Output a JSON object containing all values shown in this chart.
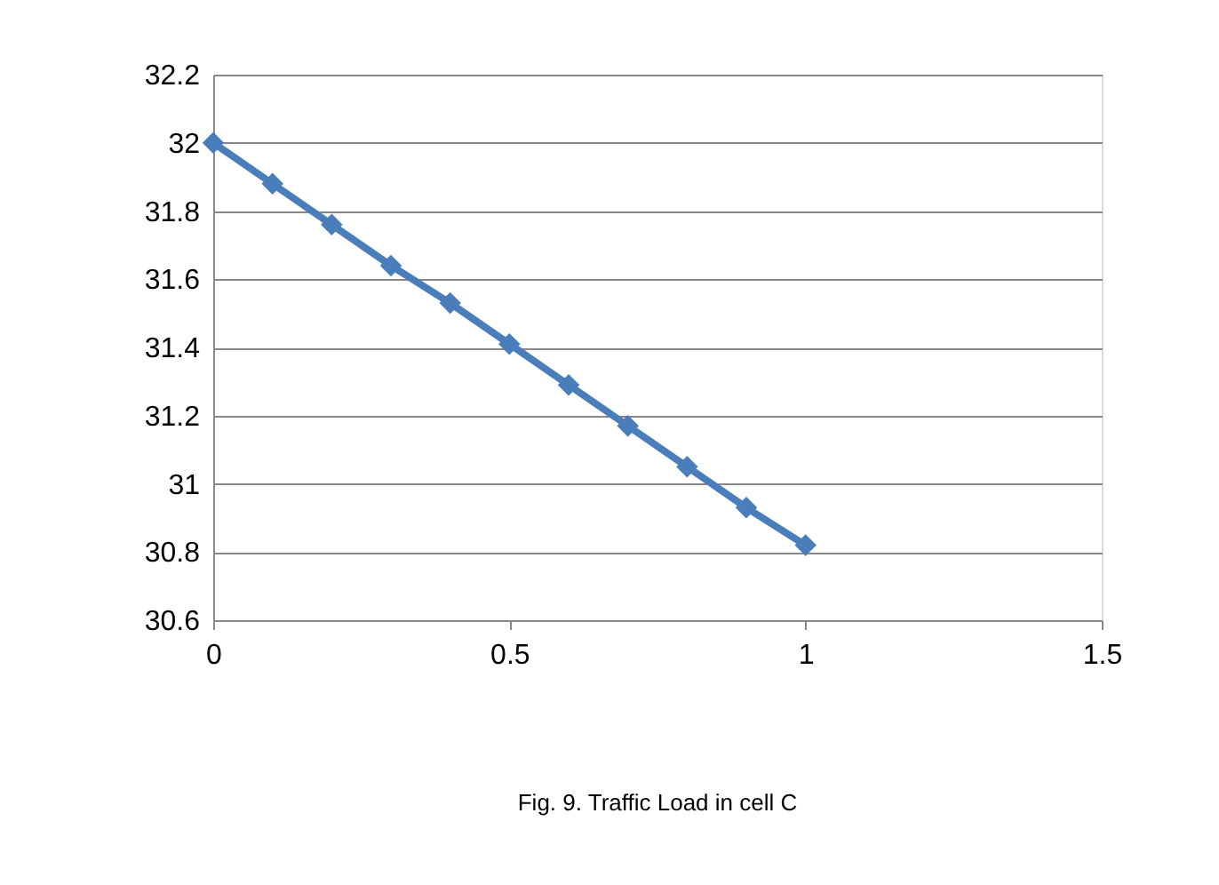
{
  "chart_data": {
    "type": "line",
    "x": [
      0,
      0.1,
      0.2,
      0.3,
      0.4,
      0.5,
      0.6,
      0.7,
      0.8,
      0.9,
      1
    ],
    "series": [
      {
        "color": "#4a7ebb",
        "values": [
          32,
          31.88,
          31.76,
          31.64,
          31.53,
          31.41,
          31.29,
          31.17,
          31.05,
          30.93,
          30.82
        ]
      }
    ],
    "xlim": [
      0,
      1.5
    ],
    "xticks": [
      0,
      0.5,
      1,
      1.5
    ],
    "ylim": [
      30.6,
      32.2
    ],
    "yticks": [
      30.6,
      30.8,
      31,
      31.2,
      31.4,
      31.6,
      31.8,
      32,
      32.2
    ],
    "grid": "y",
    "marker": "diamond",
    "line_style": "solid",
    "legend": false,
    "annotations": [
      "Fig. 9. Traffic Load in cell C"
    ]
  }
}
